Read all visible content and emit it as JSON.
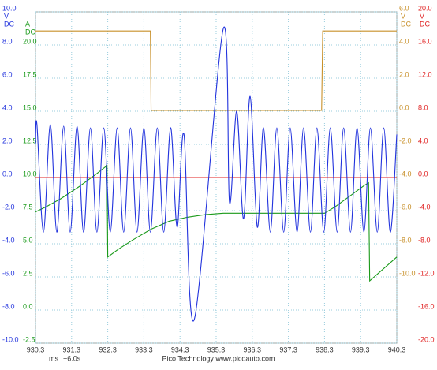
{
  "chart_data": {
    "type": "line",
    "xlim": [
      930.3,
      940.3
    ],
    "xticks": [
      930.3,
      931.3,
      932.3,
      933.3,
      934.3,
      935.3,
      936.3,
      937.3,
      938.3,
      939.3,
      940.3
    ],
    "x_unit": "ms",
    "x_offset": "+6.0s",
    "footer": "Pico Technology  www.picoauto.com",
    "grid": true,
    "axes": [
      {
        "side": "left",
        "color": "#2233dd",
        "unit": [
          "V",
          "DC"
        ],
        "lim": [
          -10,
          10
        ],
        "ticks": [
          {
            "value": 10,
            "label": "10.0"
          },
          {
            "value": 8,
            "label": "8.0"
          },
          {
            "value": 6,
            "label": "6.0"
          },
          {
            "value": 4,
            "label": "4.0"
          },
          {
            "value": 2,
            "label": "2.0"
          },
          {
            "value": 0,
            "label": "0.0"
          },
          {
            "value": -2,
            "label": "-2.0"
          },
          {
            "value": -4,
            "label": "-4.0"
          },
          {
            "value": -6,
            "label": "-6.0"
          },
          {
            "value": -8,
            "label": "-8.0"
          },
          {
            "value": -10,
            "label": "-10.0"
          }
        ]
      },
      {
        "side": "left",
        "color": "#1a9a1a",
        "unit": [
          "A",
          "DC"
        ],
        "lim": [
          -2.5,
          22.5
        ],
        "ticks": [
          {
            "value": 20,
            "label": "20.0"
          },
          {
            "value": 17.5,
            "label": "17.5"
          },
          {
            "value": 15,
            "label": "15.0"
          },
          {
            "value": 12.5,
            "label": "12.5"
          },
          {
            "value": 10,
            "label": "10.0"
          },
          7.5,
          {
            "value": 5,
            "label": "5.0"
          },
          2.5,
          {
            "value": 0,
            "label": "0.0"
          },
          -2.5
        ]
      },
      {
        "side": "right",
        "color": "#c8902a",
        "unit": [
          "V",
          "DC"
        ],
        "lim": [
          -14,
          6
        ],
        "ticks": [
          {
            "value": 6,
            "label": "6.0"
          },
          {
            "value": 4,
            "label": "4.0"
          },
          {
            "value": 2,
            "label": "2.0"
          },
          {
            "value": 0,
            "label": "0.0"
          },
          {
            "value": -2,
            "label": "-2.0"
          },
          {
            "value": -4,
            "label": "-4.0"
          },
          {
            "value": -6,
            "label": "-6.0"
          },
          {
            "value": -8,
            "label": "-8.0"
          },
          {
            "value": -10,
            "label": "-10.0"
          }
        ]
      },
      {
        "side": "right",
        "color": "#e02020",
        "unit": [
          "V",
          "DC"
        ],
        "lim": [
          -20,
          20
        ],
        "ticks": [
          {
            "value": 20,
            "label": "20.0"
          },
          {
            "value": 16,
            "label": "16.0"
          },
          {
            "value": 12,
            "label": "12.0"
          },
          {
            "value": 8,
            "label": "8.0"
          },
          {
            "value": 4,
            "label": "4.0"
          },
          {
            "value": 0,
            "label": "0.0"
          },
          {
            "value": -4,
            "label": "-4.0"
          },
          {
            "value": -8,
            "label": "-8.0"
          },
          {
            "value": -12,
            "label": "-12.0"
          },
          {
            "value": -16,
            "label": "-16.0"
          },
          {
            "value": -20,
            "label": "-20.0"
          }
        ]
      }
    ],
    "series": [
      {
        "axis": 3,
        "color": "#e02020",
        "smooth": false,
        "x": [
          930.3,
          940.3
        ],
        "values": [
          0,
          0
        ]
      },
      {
        "axis": 2,
        "color": "#c8902a",
        "smooth": false,
        "x": [
          930.3,
          933.48,
          933.5,
          938.22,
          938.25,
          940.3
        ],
        "values": [
          4.85,
          4.85,
          0.05,
          0.05,
          4.85,
          4.85
        ]
      },
      {
        "axis": 1,
        "color": "#1a9a1a",
        "smooth": false,
        "x": [
          930.3,
          930.6,
          931.0,
          931.5,
          932.0,
          932.28,
          932.3,
          932.6,
          933.0,
          933.5,
          934.0,
          934.5,
          935.0,
          935.5,
          936.5,
          937.5,
          938.3,
          938.6,
          939.0,
          939.4,
          939.52,
          939.55,
          940.3
        ],
        "values": [
          7.4,
          7.8,
          8.4,
          9.3,
          10.3,
          10.9,
          4.0,
          4.6,
          5.3,
          6.1,
          6.7,
          7.0,
          7.2,
          7.3,
          7.3,
          7.3,
          7.3,
          7.8,
          8.6,
          9.4,
          9.6,
          2.2,
          4.0
        ]
      },
      {
        "axis": 0,
        "color": "#2233dd",
        "smooth": true,
        "x": [
          930.3,
          930.34,
          930.52,
          930.71,
          930.89,
          931.08,
          931.26,
          931.45,
          931.63,
          931.82,
          932.0,
          932.19,
          932.37,
          932.56,
          932.74,
          932.93,
          933.11,
          933.3,
          933.48,
          933.67,
          933.85,
          934.04,
          934.22,
          934.41,
          934.69,
          935.5,
          935.67,
          935.87,
          936.06,
          936.24,
          936.44,
          936.61,
          936.8,
          936.98,
          937.17,
          937.35,
          937.54,
          937.72,
          937.91,
          938.09,
          938.28,
          938.46,
          938.65,
          938.83,
          939.02,
          939.2,
          939.39,
          939.57,
          939.76,
          939.94,
          940.12,
          940.3
        ],
        "values": [
          2.0,
          3.2,
          -3.3,
          3.2,
          -3.3,
          3.1,
          -3.3,
          3.1,
          -3.3,
          3.0,
          -3.3,
          3.0,
          -3.3,
          3.0,
          -3.3,
          3.0,
          -3.3,
          3.0,
          -3.3,
          3.0,
          -3.3,
          3.0,
          -3.0,
          2.6,
          -8.6,
          9.0,
          -1.5,
          4.0,
          -2.5,
          4.9,
          -3.0,
          3.0,
          -3.3,
          3.0,
          -3.3,
          3.0,
          -3.3,
          3.0,
          -3.3,
          3.0,
          -3.3,
          3.0,
          -3.3,
          3.0,
          -3.3,
          3.0,
          -3.3,
          3.0,
          -3.3,
          3.0,
          -3.3,
          2.6
        ]
      }
    ]
  }
}
